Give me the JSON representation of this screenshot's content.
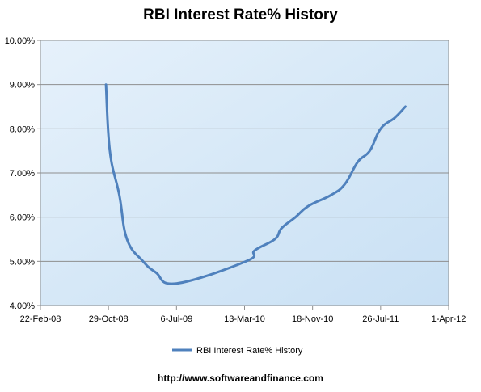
{
  "chart_data": {
    "type": "line",
    "title": "RBI Interest Rate% History",
    "xlabel": "",
    "ylabel": "",
    "x_axis": "date",
    "xlim": [
      "2008-02-22",
      "2012-04-01"
    ],
    "ylim": [
      4.0,
      10.0
    ],
    "y_tick_labels": [
      "4.00%",
      "5.00%",
      "6.00%",
      "7.00%",
      "8.00%",
      "9.00%",
      "10.00%"
    ],
    "x_tick_labels": [
      "22-Feb-08",
      "29-Oct-08",
      "6-Jul-09",
      "13-Mar-10",
      "18-Nov-10",
      "26-Jul-11",
      "1-Apr-12"
    ],
    "grid": true,
    "legend": "bottom",
    "series": [
      {
        "name": "RBI Interest Rate% History",
        "color": "#4f81bd",
        "points": [
          {
            "x": "2008-10-20",
            "y": 9.0
          },
          {
            "x": "2008-11-03",
            "y": 7.5
          },
          {
            "x": "2008-12-08",
            "y": 6.5
          },
          {
            "x": "2009-01-05",
            "y": 5.5
          },
          {
            "x": "2009-03-05",
            "y": 5.0
          },
          {
            "x": "2009-04-21",
            "y": 4.75
          },
          {
            "x": "2009-07-06",
            "y": 4.5
          },
          {
            "x": "2010-03-19",
            "y": 5.0
          },
          {
            "x": "2010-04-20",
            "y": 5.25
          },
          {
            "x": "2010-07-02",
            "y": 5.5
          },
          {
            "x": "2010-07-27",
            "y": 5.75
          },
          {
            "x": "2010-09-16",
            "y": 6.0
          },
          {
            "x": "2010-11-02",
            "y": 6.25
          },
          {
            "x": "2011-01-25",
            "y": 6.5
          },
          {
            "x": "2011-03-17",
            "y": 6.75
          },
          {
            "x": "2011-05-03",
            "y": 7.25
          },
          {
            "x": "2011-06-16",
            "y": 7.5
          },
          {
            "x": "2011-07-26",
            "y": 8.0
          },
          {
            "x": "2011-09-16",
            "y": 8.25
          },
          {
            "x": "2011-10-25",
            "y": 8.5
          }
        ]
      }
    ]
  },
  "footer": {
    "url": "http://www.softwareandfinance.com"
  }
}
